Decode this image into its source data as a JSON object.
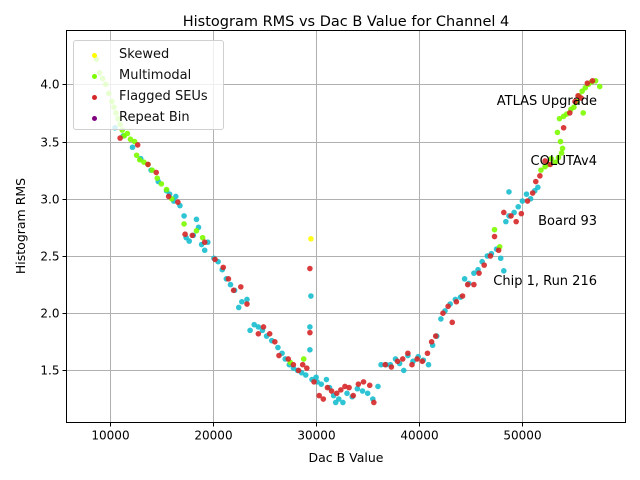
{
  "chart_data": {
    "type": "scatter",
    "title": "Histogram RMS vs Dac B Value for Channel 4",
    "xlabel": "Dac B Value",
    "ylabel": "Histogram RMS",
    "xlim": [
      5800,
      60000
    ],
    "ylim": [
      1.045,
      4.47
    ],
    "xticks": [
      10000,
      20000,
      30000,
      40000,
      50000
    ],
    "xtick_labels": [
      "10000",
      "20000",
      "30000",
      "40000",
      "50000"
    ],
    "yticks": [
      1.5,
      2.0,
      2.5,
      3.0,
      3.5,
      4.0
    ],
    "ytick_labels": [
      "1.5",
      "2.0",
      "2.5",
      "3.0",
      "3.5",
      "4.0"
    ],
    "grid": true,
    "legend_position": "top-left",
    "legend": [
      {
        "label": "Skewed",
        "color": "#ffff00"
      },
      {
        "label": "Multimodal",
        "color": "#7cfc00"
      },
      {
        "label": "Flagged SEUs",
        "color": "#d62728"
      },
      {
        "label": "Repeat Bin",
        "color": "#800080"
      }
    ],
    "annotation": [
      "ATLAS Upgrade",
      "COLUTAv4",
      "Board 93",
      "Chip 1, Run 216"
    ],
    "colors": {
      "normal": "#17becf",
      "skewed": "#ffff00",
      "multimodal": "#7cfc00",
      "flagged": "#d62728",
      "repeat": "#800080"
    },
    "series": [
      {
        "name": "Normal",
        "color": "#17becf",
        "points": [
          [
            15500,
            3.07
          ],
          [
            15800,
            3.04
          ],
          [
            16200,
            2.98
          ],
          [
            16400,
            3.02
          ],
          [
            16800,
            2.94
          ],
          [
            17200,
            2.85
          ],
          [
            17400,
            2.66
          ],
          [
            17700,
            2.63
          ],
          [
            18100,
            2.68
          ],
          [
            18400,
            2.82
          ],
          [
            18600,
            2.75
          ],
          [
            18900,
            2.6
          ],
          [
            19200,
            2.55
          ],
          [
            19500,
            2.62
          ],
          [
            20100,
            2.48
          ],
          [
            20500,
            2.45
          ],
          [
            20900,
            2.38
          ],
          [
            21300,
            2.3
          ],
          [
            21700,
            2.25
          ],
          [
            22100,
            2.2
          ],
          [
            22500,
            2.05
          ],
          [
            22800,
            2.1
          ],
          [
            23300,
            2.12
          ],
          [
            23600,
            1.85
          ],
          [
            24000,
            1.9
          ],
          [
            24400,
            1.88
          ],
          [
            24800,
            1.85
          ],
          [
            25200,
            1.8
          ],
          [
            25700,
            1.76
          ],
          [
            26300,
            1.7
          ],
          [
            26700,
            1.65
          ],
          [
            27000,
            1.6
          ],
          [
            27400,
            1.55
          ],
          [
            27800,
            1.52
          ],
          [
            28200,
            1.5
          ],
          [
            28600,
            1.48
          ],
          [
            29000,
            1.46
          ],
          [
            29400,
            1.68
          ],
          [
            29400,
            1.88
          ],
          [
            29500,
            2.15
          ],
          [
            29600,
            1.42
          ],
          [
            30000,
            1.44
          ],
          [
            30500,
            1.38
          ],
          [
            31000,
            1.42
          ],
          [
            31300,
            1.35
          ],
          [
            31700,
            1.28
          ],
          [
            32200,
            1.25
          ],
          [
            32600,
            1.22
          ],
          [
            33000,
            1.3
          ],
          [
            33500,
            1.27
          ],
          [
            34000,
            1.34
          ],
          [
            34500,
            1.32
          ],
          [
            35000,
            1.3
          ],
          [
            35500,
            1.25
          ],
          [
            36000,
            1.36
          ],
          [
            36300,
            1.55
          ],
          [
            36800,
            1.55
          ],
          [
            37200,
            1.55
          ],
          [
            37700,
            1.6
          ],
          [
            38100,
            1.56
          ],
          [
            38500,
            1.5
          ],
          [
            38900,
            1.63
          ],
          [
            39400,
            1.58
          ],
          [
            39900,
            1.62
          ],
          [
            40400,
            1.59
          ],
          [
            40900,
            1.55
          ],
          [
            41300,
            1.72
          ],
          [
            41700,
            1.8
          ],
          [
            42100,
            1.95
          ],
          [
            42500,
            2.02
          ],
          [
            43000,
            2.08
          ],
          [
            43500,
            2.12
          ],
          [
            44000,
            2.14
          ],
          [
            44400,
            2.3
          ],
          [
            44800,
            2.26
          ],
          [
            45300,
            2.35
          ],
          [
            45700,
            2.38
          ],
          [
            46100,
            2.45
          ],
          [
            46600,
            2.5
          ],
          [
            47000,
            2.52
          ],
          [
            47500,
            2.56
          ],
          [
            47900,
            2.48
          ],
          [
            48200,
            2.37
          ],
          [
            48400,
            2.8
          ],
          [
            48700,
            2.85
          ],
          [
            48700,
            3.06
          ],
          [
            49200,
            2.88
          ],
          [
            49600,
            2.93
          ],
          [
            50000,
            2.98
          ],
          [
            50400,
            3.04
          ],
          [
            50800,
            3.0
          ],
          [
            51200,
            3.07
          ],
          [
            51500,
            3.1
          ],
          [
            10500,
            3.62
          ],
          [
            11300,
            3.55
          ],
          [
            12200,
            3.45
          ],
          [
            13000,
            3.35
          ],
          [
            14000,
            3.25
          ],
          [
            14700,
            3.15
          ],
          [
            30100,
            1.4
          ],
          [
            31900,
            1.22
          ]
        ]
      },
      {
        "name": "Multimodal",
        "color": "#7cfc00",
        "points": [
          [
            8700,
            4.22
          ],
          [
            9000,
            4.1
          ],
          [
            9300,
            4.05
          ],
          [
            9600,
            4.0
          ],
          [
            9900,
            3.92
          ],
          [
            10200,
            3.85
          ],
          [
            10400,
            3.8
          ],
          [
            10600,
            3.75
          ],
          [
            10800,
            3.7
          ],
          [
            11000,
            3.65
          ],
          [
            11200,
            3.6
          ],
          [
            11400,
            3.55
          ],
          [
            11700,
            3.57
          ],
          [
            12000,
            3.52
          ],
          [
            12400,
            3.5
          ],
          [
            12600,
            3.38
          ],
          [
            12900,
            3.34
          ],
          [
            13300,
            3.32
          ],
          [
            13700,
            3.3
          ],
          [
            14100,
            3.25
          ],
          [
            14600,
            3.18
          ],
          [
            15000,
            3.13
          ],
          [
            15500,
            3.08
          ],
          [
            16000,
            3.0
          ],
          [
            17200,
            2.78
          ],
          [
            18400,
            2.72
          ],
          [
            19000,
            2.66
          ],
          [
            27500,
            1.57
          ],
          [
            28800,
            1.6
          ],
          [
            47300,
            2.73
          ],
          [
            47800,
            2.58
          ],
          [
            51800,
            3.25
          ],
          [
            52200,
            3.28
          ],
          [
            52500,
            3.3
          ],
          [
            52800,
            3.35
          ],
          [
            53200,
            3.32
          ],
          [
            53500,
            3.36
          ],
          [
            53800,
            3.4
          ],
          [
            53900,
            3.44
          ],
          [
            53700,
            3.5
          ],
          [
            53400,
            3.58
          ],
          [
            53600,
            3.7
          ],
          [
            54000,
            3.72
          ],
          [
            54300,
            3.74
          ],
          [
            54700,
            3.78
          ],
          [
            55000,
            3.8
          ],
          [
            55300,
            3.85
          ],
          [
            55500,
            3.9
          ],
          [
            55800,
            3.94
          ],
          [
            56100,
            3.97
          ],
          [
            56400,
            4.0
          ],
          [
            56700,
            4.02
          ],
          [
            57100,
            4.03
          ],
          [
            57500,
            3.98
          ],
          [
            55900,
            3.75
          ]
        ]
      },
      {
        "name": "Flagged SEUs",
        "color": "#d62728",
        "points": [
          [
            11000,
            3.53
          ],
          [
            12700,
            3.47
          ],
          [
            13700,
            3.3
          ],
          [
            14500,
            3.23
          ],
          [
            15700,
            3.02
          ],
          [
            16600,
            2.97
          ],
          [
            17300,
            2.69
          ],
          [
            18000,
            2.68
          ],
          [
            19200,
            2.62
          ],
          [
            20200,
            2.47
          ],
          [
            21000,
            2.4
          ],
          [
            21500,
            2.3
          ],
          [
            22000,
            2.2
          ],
          [
            22700,
            2.23
          ],
          [
            23300,
            2.08
          ],
          [
            24400,
            1.82
          ],
          [
            24900,
            1.88
          ],
          [
            25500,
            1.82
          ],
          [
            26000,
            1.75
          ],
          [
            26400,
            1.63
          ],
          [
            27300,
            1.6
          ],
          [
            27800,
            1.55
          ],
          [
            28300,
            1.5
          ],
          [
            28700,
            1.55
          ],
          [
            29100,
            1.52
          ],
          [
            29400,
            1.83
          ],
          [
            29400,
            2.39
          ],
          [
            29800,
            1.4
          ],
          [
            30300,
            1.28
          ],
          [
            30700,
            1.25
          ],
          [
            31100,
            1.35
          ],
          [
            31500,
            1.32
          ],
          [
            32000,
            1.3
          ],
          [
            32400,
            1.33
          ],
          [
            32800,
            1.36
          ],
          [
            33200,
            1.35
          ],
          [
            33600,
            1.28
          ],
          [
            34100,
            1.38
          ],
          [
            34600,
            1.4
          ],
          [
            35200,
            1.37
          ],
          [
            35600,
            1.22
          ],
          [
            36700,
            1.55
          ],
          [
            37300,
            1.53
          ],
          [
            37900,
            1.58
          ],
          [
            38400,
            1.6
          ],
          [
            38900,
            1.65
          ],
          [
            39300,
            1.55
          ],
          [
            39800,
            1.6
          ],
          [
            40300,
            1.58
          ],
          [
            40800,
            1.65
          ],
          [
            41200,
            1.75
          ],
          [
            41600,
            1.8
          ],
          [
            42300,
            2.0
          ],
          [
            42800,
            2.06
          ],
          [
            43200,
            1.92
          ],
          [
            43600,
            2.1
          ],
          [
            44200,
            2.15
          ],
          [
            44700,
            2.25
          ],
          [
            45300,
            2.25
          ],
          [
            45800,
            2.35
          ],
          [
            46300,
            2.42
          ],
          [
            46900,
            2.5
          ],
          [
            47300,
            2.67
          ],
          [
            47700,
            2.55
          ],
          [
            48200,
            2.88
          ],
          [
            48900,
            2.85
          ],
          [
            49400,
            2.8
          ],
          [
            49900,
            2.87
          ],
          [
            50500,
            2.98
          ],
          [
            51000,
            3.05
          ],
          [
            51300,
            3.15
          ],
          [
            51700,
            3.2
          ],
          [
            52200,
            3.33
          ],
          [
            52700,
            3.3
          ],
          [
            54000,
            3.62
          ],
          [
            54600,
            3.75
          ],
          [
            55100,
            3.85
          ],
          [
            55400,
            3.9
          ],
          [
            55700,
            3.88
          ],
          [
            56300,
            4.01
          ],
          [
            56800,
            4.03
          ]
        ]
      },
      {
        "name": "Skewed",
        "color": "#ffff00",
        "points": [
          [
            29500,
            2.65
          ]
        ]
      },
      {
        "name": "Repeat Bin",
        "color": "#800080",
        "points": []
      }
    ]
  }
}
